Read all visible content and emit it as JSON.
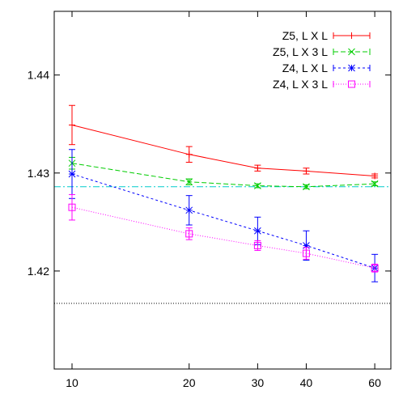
{
  "chart_data": {
    "type": "line",
    "title": "",
    "xlabel": "",
    "ylabel": "",
    "x_scale": "log",
    "xlim": [
      9,
      66
    ],
    "ylim": [
      1.41,
      1.4465
    ],
    "x_ticks": [
      10,
      20,
      30,
      40,
      60
    ],
    "x_tick_labels": [
      "10",
      "20",
      "30",
      "40",
      "60"
    ],
    "y_ticks": [
      1.42,
      1.43,
      1.44
    ],
    "y_tick_labels": [
      "1.42",
      "1.43",
      "1.44"
    ],
    "legend_position": "top-right",
    "series": [
      {
        "name": "Z5, L X L",
        "color": "#ff0000",
        "dash": "solid",
        "marker": "plus",
        "x": [
          10,
          20,
          30,
          40,
          60
        ],
        "y": [
          1.4349,
          1.4319,
          1.4305,
          1.4302,
          1.4297
        ],
        "err": [
          0.002,
          0.0008,
          0.0003,
          0.0003,
          0.0002
        ]
      },
      {
        "name": "Z5, L X 3 L",
        "color": "#00cc00",
        "dash": "dashed",
        "marker": "x",
        "x": [
          10,
          20,
          30,
          40,
          60
        ],
        "y": [
          1.431,
          1.4291,
          1.4287,
          1.4286,
          1.4289
        ],
        "err": [
          0.0006,
          0.0003,
          0.0002,
          0.0002,
          0.0002
        ]
      },
      {
        "name": "Z4, L X L",
        "color": "#0000ff",
        "dash": "dashed-fine",
        "marker": "star",
        "x": [
          10,
          20,
          30,
          40,
          60
        ],
        "y": [
          1.4299,
          1.4262,
          1.4241,
          1.4226,
          1.4203
        ],
        "err": [
          0.0025,
          0.0015,
          0.0014,
          0.0015,
          0.0014
        ]
      },
      {
        "name": "Z4, L X 3 L",
        "color": "#ff00ff",
        "dash": "dotted",
        "marker": "square",
        "x": [
          10,
          20,
          30,
          40,
          60
        ],
        "y": [
          1.4265,
          1.4238,
          1.4226,
          1.4218,
          1.4203
        ],
        "err": [
          0.0013,
          0.0006,
          0.0005,
          0.0006,
          0.0004
        ]
      }
    ],
    "reference_lines": [
      {
        "y": 1.4286,
        "color": "#00cccc",
        "dash": "dash-dot"
      },
      {
        "y": 1.4167,
        "color": "#000000",
        "dash": "dotted"
      }
    ]
  }
}
